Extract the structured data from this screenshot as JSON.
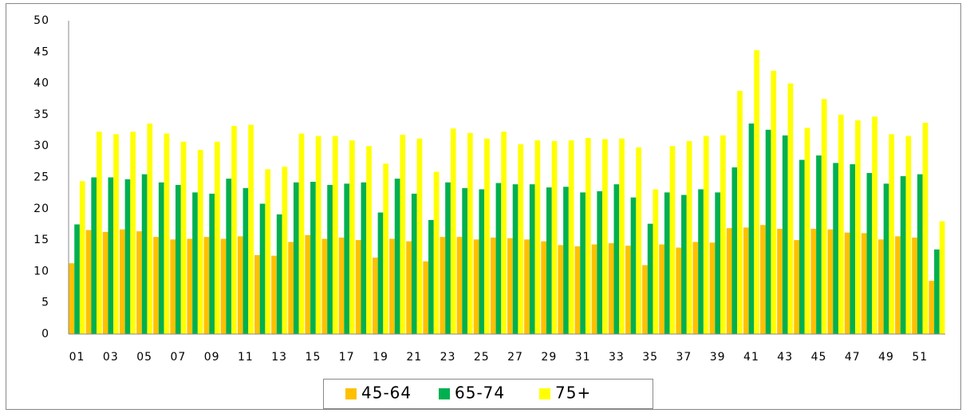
{
  "chart_data": {
    "type": "bar",
    "categories": [
      "01",
      null,
      "03",
      null,
      "05",
      null,
      "07",
      null,
      "09",
      null,
      "11",
      null,
      "13",
      null,
      "15",
      null,
      "17",
      null,
      "19",
      null,
      "21",
      null,
      "23",
      null,
      "25",
      null,
      "27",
      null,
      "29",
      null,
      "31",
      null,
      "33",
      null,
      "35",
      null,
      "37",
      null,
      "39",
      null,
      "41",
      null,
      "43",
      null,
      "45",
      null,
      "47",
      null,
      "49",
      null,
      "51",
      null
    ],
    "series": [
      {
        "name": "45-64",
        "color": "#ffc000",
        "values": [
          11.3,
          16.6,
          16.3,
          16.7,
          16.4,
          15.5,
          15.1,
          15.2,
          15.5,
          15.2,
          15.6,
          12.6,
          12.5,
          14.7,
          15.8,
          15.2,
          15.4,
          15.0,
          12.2,
          15.2,
          14.8,
          11.6,
          15.5,
          15.5,
          15.1,
          15.4,
          15.3,
          15.1,
          14.8,
          14.2,
          14.0,
          14.3,
          14.5,
          14.1,
          11.0,
          14.3,
          13.8,
          14.7,
          14.6,
          16.9,
          17.0,
          17.4,
          16.8,
          15.0,
          16.8,
          16.7,
          16.2,
          16.1,
          15.1,
          15.6,
          15.4,
          8.5
        ]
      },
      {
        "name": "65-74",
        "color": "#00b050",
        "values": [
          17.5,
          25.0,
          25.0,
          24.7,
          25.5,
          24.2,
          23.8,
          22.6,
          22.4,
          24.8,
          23.3,
          20.8,
          19.1,
          24.2,
          24.3,
          23.8,
          24.0,
          24.2,
          19.4,
          24.8,
          22.4,
          18.2,
          24.2,
          23.3,
          23.1,
          24.1,
          23.9,
          23.9,
          23.4,
          23.5,
          22.6,
          22.8,
          23.9,
          21.8,
          17.6,
          22.6,
          22.2,
          23.1,
          22.6,
          26.6,
          33.6,
          32.6,
          31.7,
          27.8,
          28.5,
          27.3,
          27.1,
          25.7,
          24.0,
          25.2,
          25.5,
          13.5
        ]
      },
      {
        "name": "75+",
        "color": "#ffff00",
        "values": [
          24.4,
          32.3,
          31.9,
          32.3,
          33.6,
          32.0,
          30.7,
          29.4,
          30.7,
          33.2,
          33.4,
          26.3,
          26.7,
          32.0,
          31.6,
          31.6,
          30.9,
          30.0,
          27.2,
          31.8,
          31.2,
          25.9,
          32.8,
          32.1,
          31.2,
          32.3,
          30.3,
          30.9,
          30.8,
          30.9,
          31.3,
          31.1,
          31.2,
          29.8,
          23.1,
          30.0,
          30.8,
          31.6,
          31.7,
          38.8,
          45.3,
          42.0,
          40.0,
          32.9,
          37.5,
          35.0,
          34.1,
          34.7,
          31.9,
          31.6,
          33.7,
          18.0
        ]
      }
    ],
    "ylim": [
      0,
      50
    ],
    "yticks": [
      0,
      5,
      10,
      15,
      20,
      25,
      30,
      35,
      40,
      45,
      50
    ],
    "grid": false,
    "legend": "bottom"
  }
}
